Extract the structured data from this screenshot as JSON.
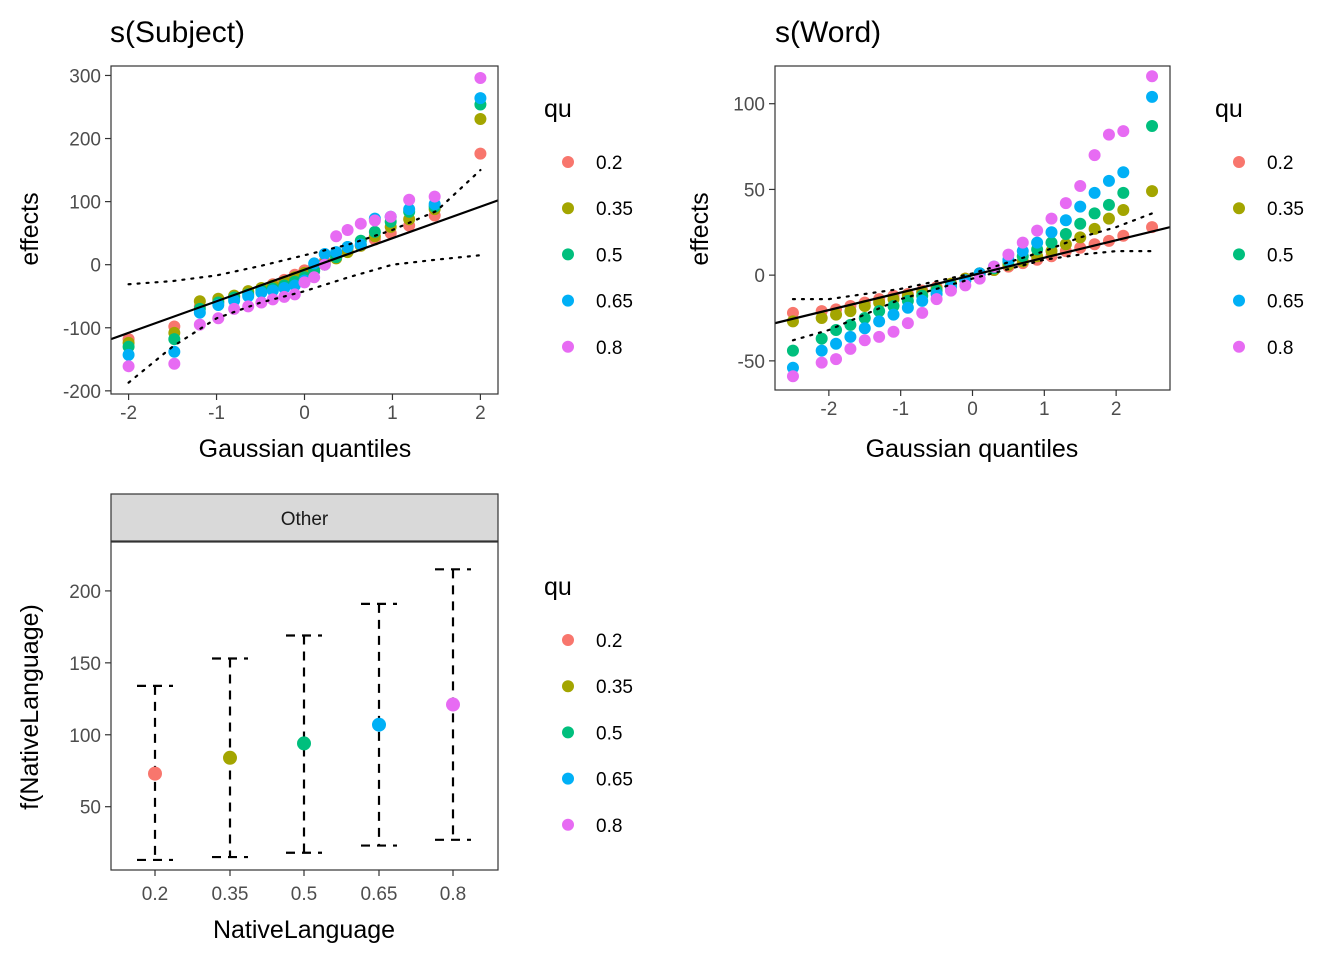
{
  "colors": {
    "qu_0.2": "#F8766D",
    "qu_0.35": "#A3A500",
    "qu_0.5": "#00BF7D",
    "qu_0.65": "#00B0F6",
    "qu_0.8": "#E76BF3"
  },
  "legend": {
    "title": "qu",
    "entries": [
      "0.2",
      "0.35",
      "0.5",
      "0.65",
      "0.8"
    ],
    "placement": "right"
  },
  "chart_data": [
    {
      "type": "scatter",
      "title": "s(Subject)",
      "xlabel": "Gaussian quantiles",
      "ylabel": "effects",
      "xlim": [
        -2.2,
        2.2
      ],
      "ylim": [
        -205,
        315
      ],
      "xticks": [
        -2,
        -1,
        0,
        1,
        2
      ],
      "yticks": [
        -200,
        -100,
        0,
        100,
        200,
        300
      ],
      "xtick_labels": [
        "-2",
        "-1",
        "0",
        "1",
        "2"
      ],
      "ytick_labels": [
        "-200",
        "-100",
        "0",
        "100",
        "200",
        "300"
      ],
      "ref_line": {
        "points": [
          [
            -2.2,
            -118
          ],
          [
            2.2,
            102
          ]
        ],
        "style": "solid"
      },
      "ci_upper": [
        [
          -2,
          -31
        ],
        [
          -1.5,
          -26
        ],
        [
          -1,
          -17
        ],
        [
          -0.5,
          -2
        ],
        [
          0,
          15
        ],
        [
          0.5,
          32
        ],
        [
          1,
          55
        ],
        [
          1.5,
          85
        ],
        [
          2,
          150
        ]
      ],
      "ci_lower": [
        [
          -2,
          -187
        ],
        [
          -1.5,
          -130
        ],
        [
          -1,
          -85
        ],
        [
          -0.5,
          -60
        ],
        [
          0,
          -42
        ],
        [
          0.5,
          -20
        ],
        [
          1,
          0
        ],
        [
          1.5,
          8
        ],
        [
          2,
          15
        ]
      ],
      "series": [
        {
          "name": "0.2",
          "x": [
            -2,
            -1.48,
            -1.19,
            -0.98,
            -0.8,
            -0.64,
            -0.49,
            -0.36,
            -0.23,
            -0.11,
            0,
            0.11,
            0.23,
            0.36,
            0.49,
            0.64,
            0.8,
            0.98,
            1.19,
            1.48,
            2
          ],
          "y": [
            -118,
            -98,
            -66,
            -57,
            -50,
            -44,
            -38,
            -31,
            -24,
            -16,
            -9,
            -2,
            5,
            14,
            22,
            30,
            40,
            50,
            62,
            78,
            176
          ]
        },
        {
          "name": "0.35",
          "x": [
            -2,
            -1.48,
            -1.19,
            -0.98,
            -0.8,
            -0.64,
            -0.49,
            -0.36,
            -0.23,
            -0.11,
            0,
            0.11,
            0.23,
            0.36,
            0.49,
            0.64,
            0.8,
            0.98,
            1.19,
            1.48,
            2
          ],
          "y": [
            -124,
            -108,
            -58,
            -54,
            -49,
            -42,
            -37,
            -33,
            -27,
            -20,
            -13,
            -6,
            2,
            10,
            20,
            30,
            45,
            60,
            72,
            88,
            231
          ]
        },
        {
          "name": "0.5",
          "x": [
            -2,
            -1.48,
            -1.19,
            -0.98,
            -0.8,
            -0.64,
            -0.49,
            -0.36,
            -0.23,
            -0.11,
            0,
            0.11,
            0.23,
            0.36,
            0.49,
            0.64,
            0.8,
            0.98,
            1.19,
            1.48,
            2
          ],
          "y": [
            -130,
            -118,
            -70,
            -60,
            -52,
            -47,
            -41,
            -38,
            -33,
            -27,
            -20,
            -10,
            0,
            12,
            28,
            38,
            52,
            68,
            84,
            92,
            254
          ]
        },
        {
          "name": "0.65",
          "x": [
            -2,
            -1.48,
            -1.19,
            -0.98,
            -0.8,
            -0.64,
            -0.49,
            -0.36,
            -0.23,
            -0.11,
            0,
            0.11,
            0.23,
            0.36,
            0.49,
            0.64,
            0.8,
            0.98,
            1.19,
            1.48,
            2
          ],
          "y": [
            -143,
            -138,
            -76,
            -64,
            -57,
            -50,
            -44,
            -41,
            -37,
            -33,
            -25,
            2,
            17,
            20,
            28,
            32,
            73,
            76,
            88,
            96,
            264
          ]
        },
        {
          "name": "0.8",
          "x": [
            -2,
            -1.48,
            -1.19,
            -0.98,
            -0.8,
            -0.64,
            -0.49,
            -0.36,
            -0.23,
            -0.11,
            0,
            0.11,
            0.23,
            0.36,
            0.49,
            0.64,
            0.8,
            0.98,
            1.19,
            1.48,
            2
          ],
          "y": [
            -161,
            -157,
            -95,
            -85,
            -70,
            -66,
            -60,
            -55,
            -51,
            -47,
            -28,
            -20,
            0,
            45,
            55,
            65,
            70,
            76,
            103,
            108,
            296
          ]
        }
      ]
    },
    {
      "type": "scatter",
      "title": "s(Word)",
      "xlabel": "Gaussian quantiles",
      "ylabel": "effects",
      "xlim": [
        -2.75,
        2.75
      ],
      "ylim": [
        -67,
        122
      ],
      "xticks": [
        -2,
        -1,
        0,
        1,
        2
      ],
      "yticks": [
        -50,
        0,
        50,
        100
      ],
      "xtick_labels": [
        "-2",
        "-1",
        "0",
        "1",
        "2"
      ],
      "ytick_labels": [
        "-50",
        "0",
        "50",
        "100"
      ],
      "ref_line": {
        "points": [
          [
            -2.75,
            -28
          ],
          [
            2.75,
            28
          ]
        ],
        "style": "solid"
      },
      "ci_upper": [
        [
          -2.5,
          -14
        ],
        [
          -2,
          -14
        ],
        [
          -1.5,
          -11
        ],
        [
          -1,
          -8
        ],
        [
          0,
          1
        ],
        [
          1,
          14
        ],
        [
          1.5,
          22
        ],
        [
          2,
          28
        ],
        [
          2.5,
          36
        ]
      ],
      "ci_lower": [
        [
          -2.5,
          -38
        ],
        [
          -2,
          -32
        ],
        [
          -1.5,
          -23
        ],
        [
          -1,
          -14
        ],
        [
          0,
          -2
        ],
        [
          1,
          9
        ],
        [
          1.5,
          12
        ],
        [
          2,
          14
        ],
        [
          2.5,
          14
        ]
      ],
      "series": [
        {
          "name": "0.2",
          "x": [
            -2.5,
            -2.1,
            -1.9,
            -1.7,
            -1.5,
            -1.3,
            -1.1,
            -0.9,
            -0.7,
            -0.5,
            -0.3,
            -0.1,
            0.1,
            0.3,
            0.5,
            0.7,
            0.9,
            1.1,
            1.3,
            1.5,
            1.7,
            1.9,
            2.1,
            2.5
          ],
          "y": [
            -22,
            -21,
            -20,
            -18,
            -16,
            -14,
            -12,
            -11,
            -9,
            -7,
            -5,
            -2,
            1,
            3,
            5,
            7,
            9,
            11,
            14,
            16,
            18,
            20,
            23,
            28
          ]
        },
        {
          "name": "0.35",
          "x": [
            -2.5,
            -2.1,
            -1.9,
            -1.7,
            -1.5,
            -1.3,
            -1.1,
            -0.9,
            -0.7,
            -0.5,
            -0.3,
            -0.1,
            0.1,
            0.3,
            0.5,
            0.7,
            0.9,
            1.1,
            1.3,
            1.5,
            1.7,
            1.9,
            2.1,
            2.5
          ],
          "y": [
            -27,
            -25,
            -23,
            -21,
            -18,
            -16,
            -14,
            -12,
            -10,
            -8,
            -5,
            -2,
            1,
            3,
            6,
            8,
            11,
            14,
            18,
            22,
            27,
            33,
            38,
            49
          ]
        },
        {
          "name": "0.5",
          "x": [
            -2.5,
            -2.1,
            -1.9,
            -1.7,
            -1.5,
            -1.3,
            -1.1,
            -0.9,
            -0.7,
            -0.5,
            -0.3,
            -0.1,
            0.1,
            0.3,
            0.5,
            0.7,
            0.9,
            1.1,
            1.3,
            1.5,
            1.7,
            1.9,
            2.1,
            2.5
          ],
          "y": [
            -44,
            -37,
            -32,
            -29,
            -25,
            -21,
            -18,
            -15,
            -12,
            -9,
            -6,
            -3,
            1,
            4,
            8,
            11,
            15,
            19,
            24,
            30,
            36,
            41,
            48,
            87
          ]
        },
        {
          "name": "0.65",
          "x": [
            -2.5,
            -2.1,
            -1.9,
            -1.7,
            -1.5,
            -1.3,
            -1.1,
            -0.9,
            -0.7,
            -0.5,
            -0.3,
            -0.1,
            0.1,
            0.3,
            0.5,
            0.7,
            0.9,
            1.1,
            1.3,
            1.5,
            1.7,
            1.9,
            2.1,
            2.5
          ],
          "y": [
            -54,
            -44,
            -40,
            -36,
            -31,
            -27,
            -23,
            -19,
            -15,
            -11,
            -7,
            -3,
            1,
            5,
            9,
            14,
            19,
            25,
            32,
            40,
            48,
            55,
            60,
            104
          ]
        },
        {
          "name": "0.8",
          "x": [
            -2.5,
            -2.1,
            -1.9,
            -1.7,
            -1.5,
            -1.3,
            -1.1,
            -0.9,
            -0.7,
            -0.5,
            -0.3,
            -0.1,
            0.1,
            0.3,
            0.5,
            0.7,
            0.9,
            1.1,
            1.3,
            1.5,
            1.7,
            1.9,
            2.1,
            2.5
          ],
          "y": [
            -59,
            -51,
            -49,
            -43,
            -38,
            -36,
            -33,
            -28,
            -22,
            -14,
            -9,
            -6,
            -2,
            5,
            12,
            19,
            26,
            33,
            42,
            52,
            70,
            82,
            84,
            116
          ]
        }
      ]
    },
    {
      "type": "errorbar",
      "strip_label": "Other",
      "xlabel": "NativeLanguage",
      "ylabel": "f(NativeLanguage)",
      "categories": [
        "0.2",
        "0.35",
        "0.5",
        "0.65",
        "0.8"
      ],
      "ylim": [
        6,
        234
      ],
      "yticks": [
        50,
        100,
        150,
        200
      ],
      "ytick_labels": [
        "50",
        "100",
        "150",
        "200"
      ],
      "values": [
        73,
        84,
        94,
        107,
        121
      ],
      "lower": [
        13,
        15,
        18,
        23,
        27
      ],
      "upper": [
        134,
        153,
        169,
        191,
        215
      ]
    }
  ]
}
